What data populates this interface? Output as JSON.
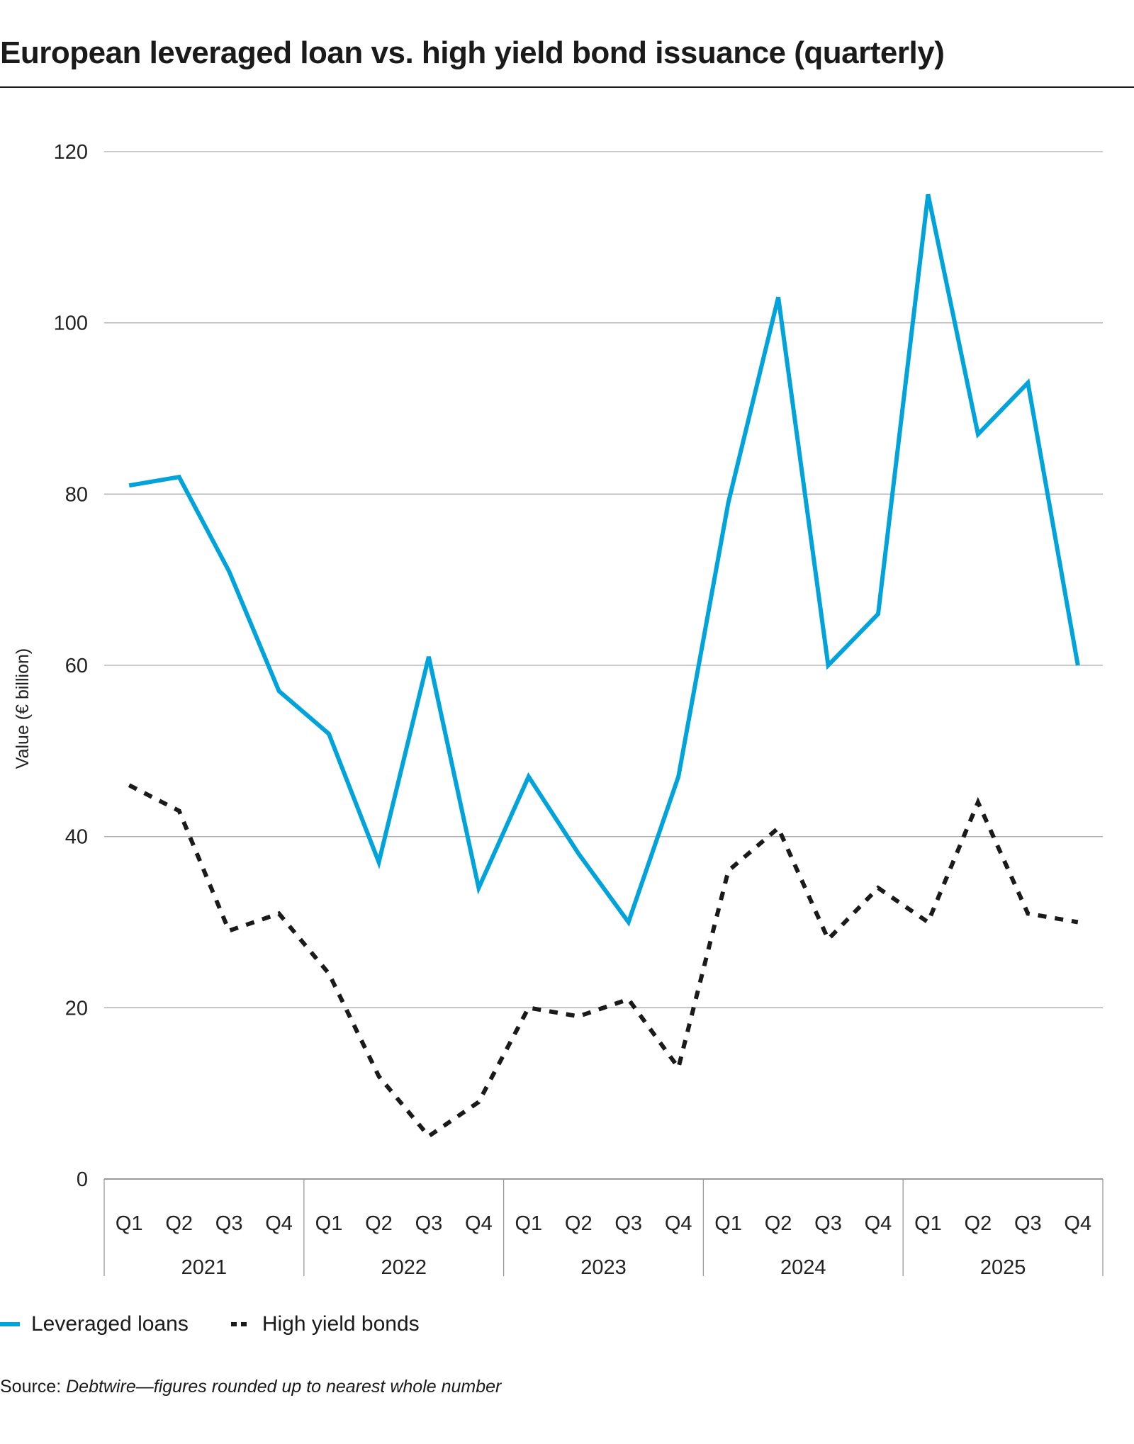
{
  "title": "European leveraged loan vs. high yield bond issuance (quarterly)",
  "source_label": "Source:",
  "source_text": "Debtwire—figures rounded up to nearest whole number",
  "chart_data": {
    "type": "line",
    "title": "European leveraged loan vs. high yield bond issuance (quarterly)",
    "ylabel": "Value (€ billion)",
    "xlabel": "",
    "ylim": [
      0,
      120
    ],
    "yticks": [
      0,
      20,
      40,
      60,
      80,
      100,
      120
    ],
    "grid": true,
    "legend": "bottom-left",
    "years": [
      "2021",
      "2022",
      "2023",
      "2024",
      "2025"
    ],
    "quarters": [
      "Q1",
      "Q2",
      "Q3",
      "Q4"
    ],
    "categories": [
      "2021 Q1",
      "2021 Q2",
      "2021 Q3",
      "2021 Q4",
      "2022 Q1",
      "2022 Q2",
      "2022 Q3",
      "2022 Q4",
      "2023 Q1",
      "2023 Q2",
      "2023 Q3",
      "2023 Q4",
      "2024 Q1",
      "2024 Q2",
      "2024 Q3",
      "2024 Q4",
      "2025 Q1",
      "2025 Q2",
      "2025 Q3",
      "2025 Q4"
    ],
    "series": [
      {
        "name": "Leveraged loans",
        "color": "#00a3da",
        "style": "solid",
        "values": [
          81,
          82,
          71,
          57,
          52,
          37,
          61,
          34,
          47,
          38,
          30,
          47,
          79,
          103,
          60,
          66,
          115,
          87,
          93,
          60
        ]
      },
      {
        "name": "High yield bonds",
        "color": "#1a1a1a",
        "style": "dashed",
        "values": [
          46,
          43,
          29,
          31,
          24,
          12,
          5,
          9,
          20,
          19,
          21,
          13,
          36,
          41,
          28,
          34,
          30,
          44,
          31,
          30
        ]
      }
    ]
  }
}
